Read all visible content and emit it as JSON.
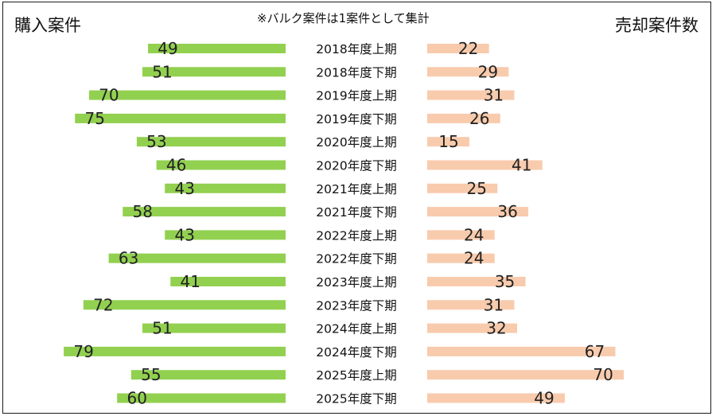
{
  "chart_data": {
    "type": "bar",
    "left_title": "購入案件",
    "right_title": "売却案件数",
    "note": "※バルク案件は1案件として集計",
    "categories": [
      "2018年度上期",
      "2018年度下期",
      "2019年度上期",
      "2019年度下期",
      "2020年度上期",
      "2020年度下期",
      "2021年度上期",
      "2021年度下期",
      "2022年度上期",
      "2022年度下期",
      "2023年度上期",
      "2023年度下期",
      "2024年度上期",
      "2024年度下期",
      "2025年度上期",
      "2025年度下期"
    ],
    "series": [
      {
        "name": "購入案件",
        "color": "#92d050",
        "side": "left",
        "values": [
          49,
          51,
          70,
          75,
          53,
          46,
          43,
          58,
          43,
          63,
          41,
          72,
          51,
          79,
          55,
          60
        ]
      },
      {
        "name": "売却案件数",
        "color": "#f8cbad",
        "side": "right",
        "values": [
          22,
          29,
          31,
          26,
          15,
          41,
          25,
          36,
          24,
          24,
          35,
          31,
          32,
          67,
          70,
          49
        ]
      }
    ]
  }
}
